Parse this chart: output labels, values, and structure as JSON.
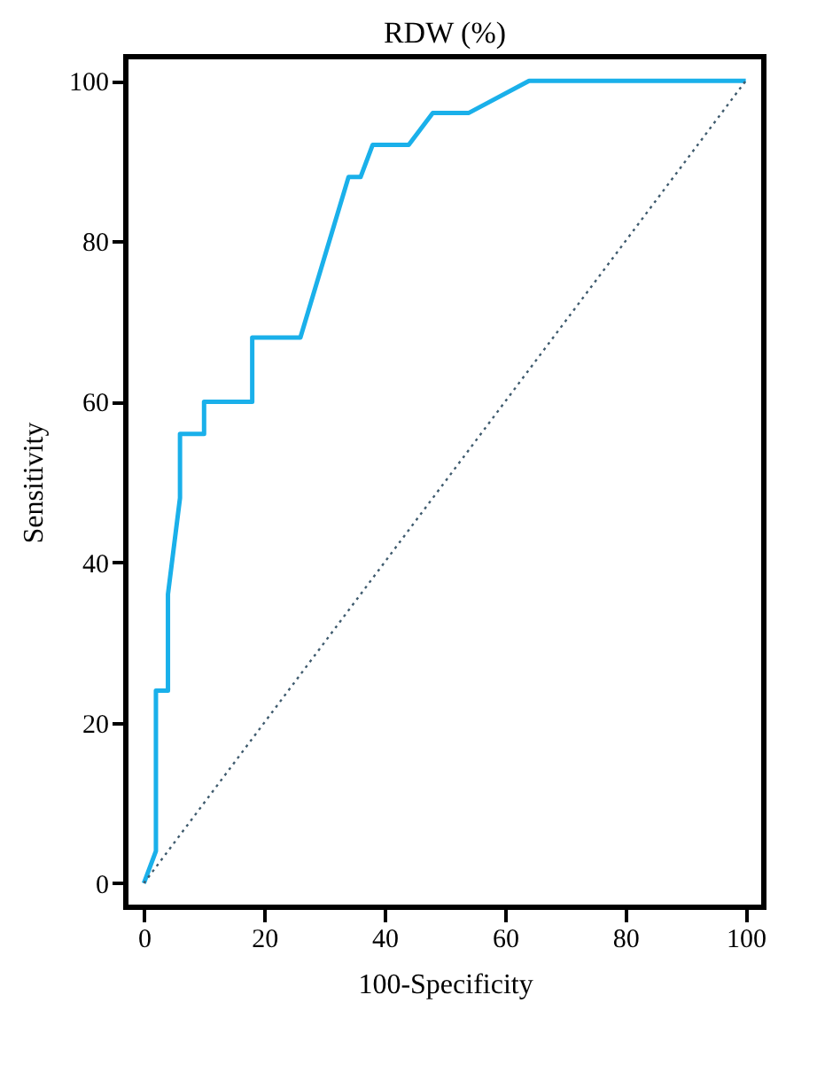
{
  "chart_data": {
    "type": "line",
    "title": "RDW (%)",
    "xlabel": "100-Specificity",
    "ylabel": "Sensitivity",
    "xlim": [
      -3,
      103
    ],
    "ylim": [
      -3,
      103
    ],
    "xticks": [
      0,
      20,
      40,
      60,
      80,
      100
    ],
    "yticks": [
      0,
      20,
      40,
      60,
      80,
      100
    ],
    "grid": false,
    "series": [
      {
        "color": "#1ab0ea",
        "line_style": "solid",
        "x": [
          0,
          2,
          2,
          4,
          4,
          6,
          6,
          10,
          10,
          18,
          18,
          26,
          34,
          36,
          38,
          44,
          48,
          54,
          64,
          100
        ],
        "values": [
          0,
          4,
          24,
          24,
          36,
          48,
          56,
          56,
          60,
          60,
          68,
          68,
          88,
          88,
          92,
          92,
          96,
          96,
          100,
          100
        ]
      },
      {
        "color": "#3f5b6e",
        "line_style": "dotted",
        "x": [
          0,
          100
        ],
        "values": [
          0,
          100
        ]
      }
    ]
  }
}
